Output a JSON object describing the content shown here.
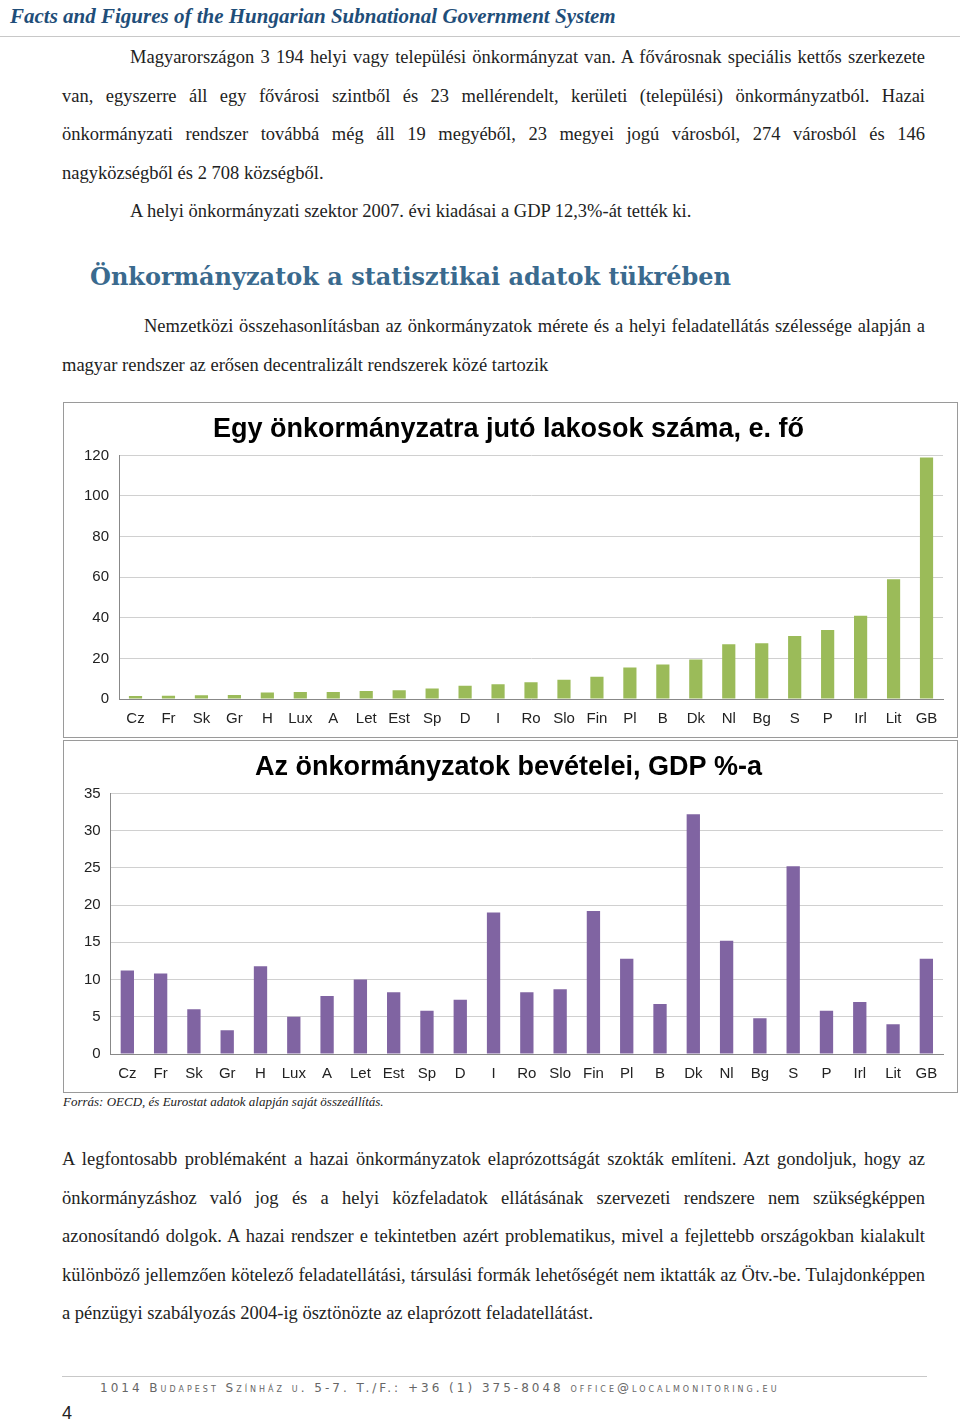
{
  "header": {
    "title": "Facts and Figures of the Hungarian Subnational Government System"
  },
  "paragraphs": [
    "Magyarországon 3 194 helyi vagy települési önkormányzat van. A fővárosnak speciális kettős szerkezete van, egyszerre áll egy fővárosi szintből és 23 mellérendelt, kerületi (települési) önkormányzatból. Hazai önkormányzati rendszer továbbá még áll 19 megyéből, 23 megyei jogú városból, 274 városból és 146 nagyközségből és 2 708 községből.",
    "A helyi önkormányzati szektor 2007. évi kiadásai a GDP 12,3%-át tették ki."
  ],
  "heading": "Önkormányzatok a statisztikai adatok tükrében",
  "intro": "Nemzetközi összehasonlításban az önkormányzatok mérete és a helyi feladatellátás szélessége alapján a magyar rendszer az erősen decentralizált rendszerek közé tartozik",
  "chart_data": [
    {
      "type": "bar",
      "title": "Egy önkormányzatra jutó lakosok száma, e. fő",
      "categories": [
        "Cz",
        "Fr",
        "Sk",
        "Gr",
        "H",
        "Lux",
        "A",
        "Let",
        "Est",
        "Sp",
        "D",
        "I",
        "Ro",
        "Slo",
        "Fin",
        "Pl",
        "B",
        "Dk",
        "Nl",
        "Bg",
        "S",
        "P",
        "Irl",
        "Lit",
        "GB"
      ],
      "values": [
        1.5,
        1.6,
        1.8,
        2,
        3.2,
        3.5,
        3.5,
        4,
        4.3,
        5.2,
        6.5,
        7.3,
        8.3,
        9.5,
        11,
        15.5,
        17,
        19.5,
        27,
        27.5,
        31,
        34,
        41,
        59,
        119
      ],
      "color": "#9bbb59",
      "ylim": [
        0,
        120
      ],
      "yticks": [
        0,
        20,
        40,
        60,
        80,
        100,
        120
      ],
      "grid": true
    },
    {
      "type": "bar",
      "title": "Az önkormányzatok bevételei, GDP %-a",
      "categories": [
        "Cz",
        "Fr",
        "Sk",
        "Gr",
        "H",
        "Lux",
        "A",
        "Let",
        "Est",
        "Sp",
        "D",
        "I",
        "Ro",
        "Slo",
        "Fin",
        "Pl",
        "B",
        "Dk",
        "Nl",
        "Bg",
        "S",
        "P",
        "Irl",
        "Lit",
        "GB"
      ],
      "values": [
        11.2,
        10.8,
        6,
        3.2,
        11.8,
        5,
        7.8,
        10,
        8.3,
        5.8,
        7.3,
        19,
        8.3,
        8.7,
        19.2,
        12.8,
        6.7,
        32.2,
        15.2,
        4.8,
        25.2,
        5.8,
        7,
        4,
        12.8
      ],
      "color": "#8064a2",
      "ylim": [
        0,
        35
      ],
      "yticks": [
        0,
        5,
        10,
        15,
        20,
        25,
        30,
        35
      ],
      "grid": true
    }
  ],
  "source": "Forrás: OECD, és Eurostat adatok alapján saját összeállítás.",
  "closing": "A legfontosabb problémaként a hazai önkormányzatok elaprózottságát szokták említeni. Azt gondoljuk, hogy az önkormányzáshoz való jog és a helyi közfeladatok ellátásának szervezeti rendszere nem szükségképpen azonosítandó dolgok. A hazai rendszer e tekintetben azért problematikus, mivel a fejlettebb országokban kialakult különböző jellemzően kötelező feladatellátási, társulási formák lehetőségét nem iktatták az Ötv.-be. Tulajdonképpen a pénzügyi szabályozás 2004-ig ösztönözte az elaprózott feladatellátást.",
  "footer": "1014 Budapest Színház u. 5-7. T./F.: +36 (1) 375-8048 office@localmonitoring.eu",
  "page_number": 4
}
